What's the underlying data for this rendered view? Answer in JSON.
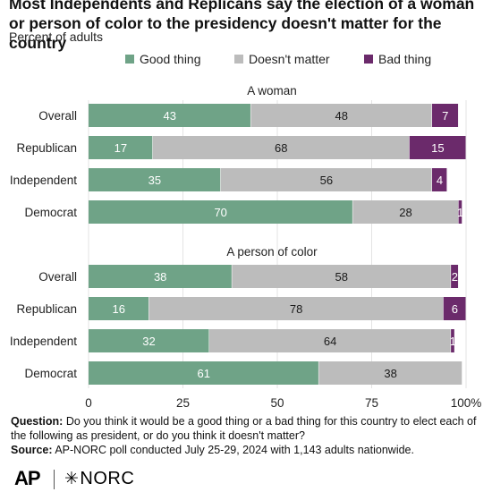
{
  "header": {
    "title": "Most Independents and Replicans say the election of a woman or person of color to the presidency doesn't matter for the country",
    "subtitle": "Percent of adults"
  },
  "legend": [
    {
      "label": "Good thing",
      "color": "#6fa387"
    },
    {
      "label": "Doesn't matter",
      "color": "#bcbcbc"
    },
    {
      "label": "Bad thing",
      "color": "#6b2a6b"
    }
  ],
  "chart_data": {
    "type": "bar",
    "orientation": "horizontal",
    "stacked": true,
    "xlim": [
      0,
      100
    ],
    "x_ticks": [
      "0",
      "25",
      "50",
      "75",
      "100%"
    ],
    "grid": true,
    "legend_position": "top",
    "panels": [
      {
        "title": "A woman",
        "categories": [
          "Overall",
          "Republican",
          "Independent",
          "Democrat"
        ],
        "series": [
          {
            "name": "Good thing",
            "values": [
              43,
              17,
              35,
              70
            ]
          },
          {
            "name": "Doesn't matter",
            "values": [
              48,
              68,
              56,
              28
            ]
          },
          {
            "name": "Bad thing",
            "values": [
              7,
              15,
              4,
              1
            ]
          }
        ]
      },
      {
        "title": "A person of color",
        "categories": [
          "Overall",
          "Republican",
          "Independent",
          "Democrat"
        ],
        "series": [
          {
            "name": "Good thing",
            "values": [
              38,
              16,
              32,
              61
            ]
          },
          {
            "name": "Doesn't matter",
            "values": [
              58,
              78,
              64,
              38
            ]
          },
          {
            "name": "Bad thing",
            "values": [
              2,
              6,
              1,
              null
            ]
          }
        ]
      }
    ]
  },
  "footer": {
    "question_label": "Question:",
    "question_text": "Do you think it would be a good thing or a bad thing for this country to elect each of the following as president, or do you think it doesn't matter?",
    "source_label": "Source:",
    "source_text": "AP-NORC poll conducted July 25-29, 2024 with 1,143 adults nationwide."
  },
  "logos": {
    "ap": "AP",
    "norc": "NORC",
    "norc_icon": "asterisk-icon"
  }
}
